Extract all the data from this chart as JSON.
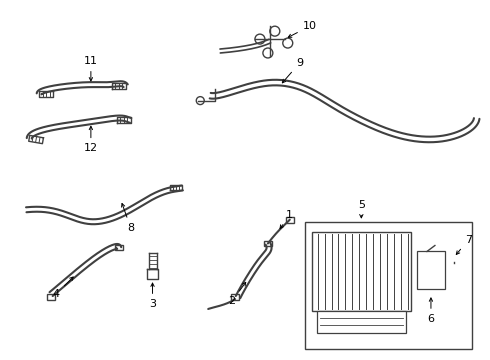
{
  "bg_color": "#ffffff",
  "line_color": "#404040",
  "label_color": "#000000",
  "fig_width": 4.9,
  "fig_height": 3.6,
  "dpi": 100,
  "lw_tube": 1.5,
  "lw_connector": 1.0,
  "lw_thin": 0.8
}
